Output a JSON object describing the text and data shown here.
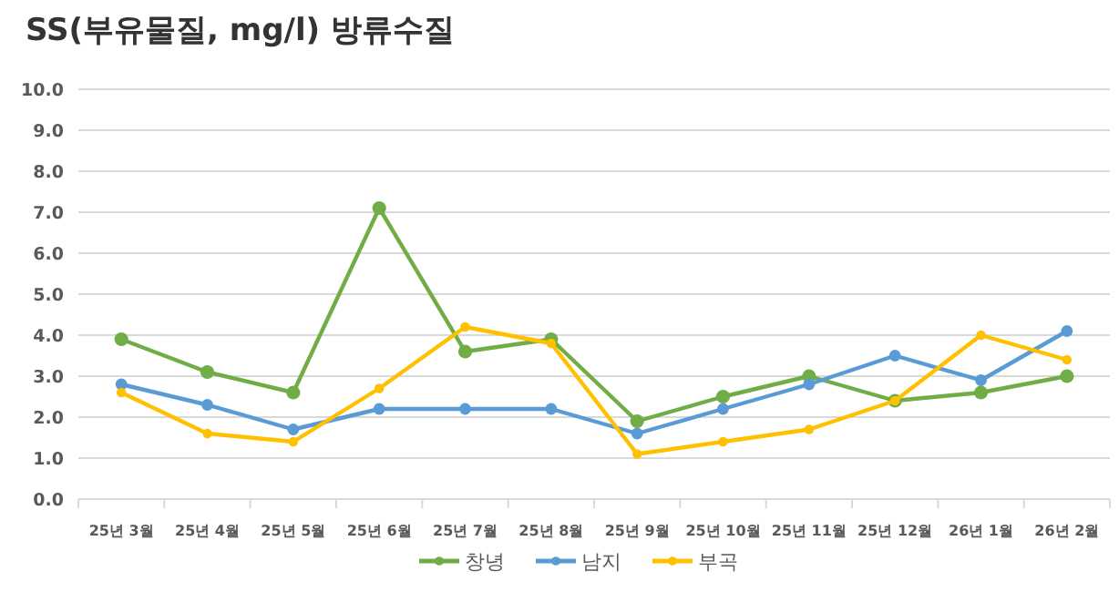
{
  "chart_data": {
    "type": "line",
    "title": "SS(부유물질, mg/l) 방류수질",
    "categories": [
      "25년 3월",
      "25년 4월",
      "25년 5월",
      "25년 6월",
      "25년 7월",
      "25년 8월",
      "25년 9월",
      "25년 10월",
      "25년 11월",
      "25년 12월",
      "26년 1월",
      "26년 2월"
    ],
    "series": [
      {
        "name": "창녕",
        "color": "#70ad47",
        "values": [
          3.9,
          3.1,
          2.6,
          7.1,
          3.6,
          3.9,
          1.9,
          2.5,
          3.0,
          2.4,
          2.6,
          3.0
        ]
      },
      {
        "name": "남지",
        "color": "#5b9bd5",
        "values": [
          2.8,
          2.3,
          1.7,
          2.2,
          2.2,
          2.2,
          1.6,
          2.2,
          2.8,
          3.5,
          2.9,
          4.1
        ]
      },
      {
        "name": "부곡",
        "color": "#ffc000",
        "values": [
          2.6,
          1.6,
          1.4,
          2.7,
          4.2,
          3.8,
          1.1,
          1.4,
          1.7,
          2.4,
          4.0,
          3.4
        ]
      }
    ],
    "ylim": [
      0,
      10
    ],
    "yticks": [
      {
        "value": 0,
        "label": "0.0"
      },
      {
        "value": 1,
        "label": "1.0"
      },
      {
        "value": 2,
        "label": "2.0"
      },
      {
        "value": 3,
        "label": "3.0"
      },
      {
        "value": 4,
        "label": "4.0"
      },
      {
        "value": 5,
        "label": "5.0"
      },
      {
        "value": 6,
        "label": "6.0"
      },
      {
        "value": 7,
        "label": "7.0"
      },
      {
        "value": 8,
        "label": "8.0"
      },
      {
        "value": 9,
        "label": "9.0"
      },
      {
        "value": 10,
        "label": "10.0"
      }
    ],
    "grid": "y",
    "legend": "bottom",
    "marker": "circle",
    "line_style": "solid"
  }
}
